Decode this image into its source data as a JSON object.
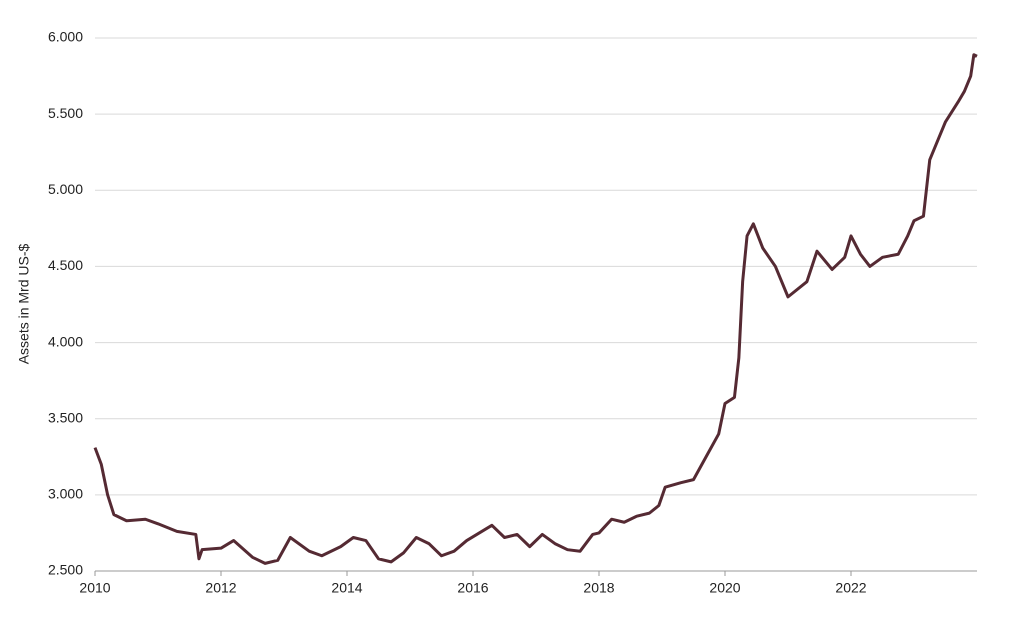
{
  "chart_data": {
    "type": "line",
    "y_label": "Assets in Mrd US-$",
    "x": [
      2010.0,
      2010.1,
      2010.2,
      2010.3,
      2010.5,
      2010.8,
      2011.0,
      2011.3,
      2011.6,
      2011.65,
      2011.7,
      2012.0,
      2012.2,
      2012.5,
      2012.7,
      2012.9,
      2013.1,
      2013.4,
      2013.6,
      2013.9,
      2014.1,
      2014.3,
      2014.5,
      2014.7,
      2014.9,
      2015.1,
      2015.3,
      2015.5,
      2015.7,
      2015.9,
      2016.1,
      2016.3,
      2016.5,
      2016.7,
      2016.9,
      2017.1,
      2017.3,
      2017.5,
      2017.7,
      2017.9,
      2018.0,
      2018.2,
      2018.4,
      2018.6,
      2018.8,
      2018.95,
      2019.05,
      2019.3,
      2019.5,
      2019.7,
      2019.9,
      2020.0,
      2020.15,
      2020.22,
      2020.28,
      2020.35,
      2020.45,
      2020.6,
      2020.8,
      2021.0,
      2021.3,
      2021.46,
      2021.7,
      2021.9,
      2022.0,
      2022.15,
      2022.3,
      2022.5,
      2022.75,
      2022.9,
      2023.0,
      2023.15,
      2023.25,
      2023.4,
      2023.5,
      2023.7,
      2023.8,
      2023.9,
      2023.95,
      2024.0
    ],
    "series": [
      {
        "name": "Assets",
        "color": "#552a33",
        "values": [
          3310,
          3200,
          3000,
          2870,
          2830,
          2840,
          2810,
          2760,
          2740,
          2580,
          2640,
          2650,
          2700,
          2590,
          2550,
          2570,
          2720,
          2630,
          2600,
          2660,
          2720,
          2700,
          2580,
          2560,
          2620,
          2720,
          2680,
          2600,
          2630,
          2700,
          2750,
          2800,
          2720,
          2740,
          2660,
          2740,
          2680,
          2640,
          2630,
          2740,
          2750,
          2840,
          2820,
          2860,
          2880,
          2930,
          3050,
          3080,
          3100,
          3250,
          3400,
          3600,
          3640,
          3900,
          4400,
          4700,
          4780,
          4620,
          4500,
          4300,
          4400,
          4600,
          4480,
          4560,
          4700,
          4580,
          4500,
          4560,
          4580,
          4700,
          4800,
          4830,
          5200,
          5350,
          5450,
          5580,
          5650,
          5750,
          5890,
          5880
        ]
      }
    ],
    "xlim": [
      2010,
      2024
    ],
    "xticks": [
      2010,
      2012,
      2014,
      2016,
      2018,
      2020,
      2022
    ],
    "ylim": [
      2500,
      6000
    ],
    "yticks": [
      {
        "value": 2500,
        "label": "2.500"
      },
      {
        "value": 3000,
        "label": "3.000"
      },
      {
        "value": 3500,
        "label": "3.500"
      },
      {
        "value": 4000,
        "label": "4.000"
      },
      {
        "value": 4500,
        "label": "4.500"
      },
      {
        "value": 5000,
        "label": "5.000"
      },
      {
        "value": 5500,
        "label": "5.500"
      },
      {
        "value": 6000,
        "label": "6.000"
      }
    ],
    "grid": true
  }
}
